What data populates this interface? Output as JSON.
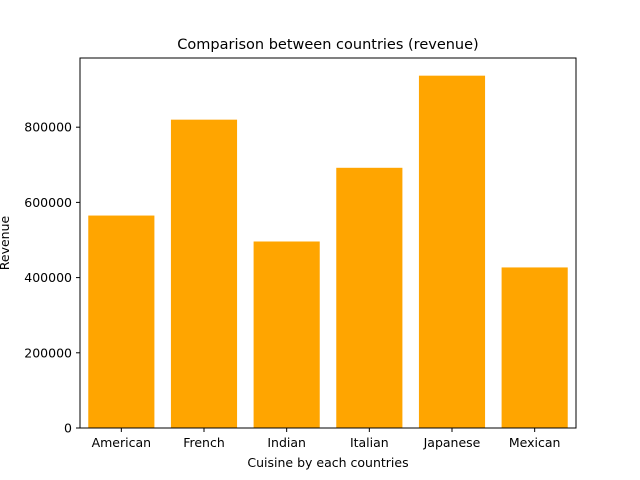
{
  "chart_data": {
    "type": "bar",
    "title": "Comparison between countries (revenue)",
    "xlabel": "Cuisine by each countries",
    "ylabel": "Revenue",
    "categories": [
      "American",
      "French",
      "Indian",
      "Italian",
      "Japanese",
      "Mexican"
    ],
    "values": [
      565000,
      820000,
      496000,
      692000,
      937000,
      427000
    ],
    "ylim": [
      0,
      984000
    ],
    "yticks": [
      0,
      200000,
      400000,
      600000,
      800000
    ],
    "ytick_labels": [
      "0",
      "200000",
      "400000",
      "600000",
      "800000"
    ],
    "bar_color": "#ffa500",
    "grid": false,
    "legend": "none"
  }
}
